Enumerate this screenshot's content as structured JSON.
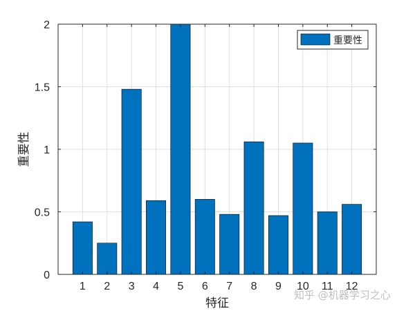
{
  "chart_data": {
    "type": "bar",
    "categories": [
      "1",
      "2",
      "3",
      "4",
      "5",
      "6",
      "7",
      "8",
      "9",
      "10",
      "11",
      "12"
    ],
    "series": [
      {
        "name": "重要性",
        "color": "#0072BD",
        "values": [
          0.42,
          0.25,
          1.48,
          0.59,
          2.0,
          0.6,
          0.48,
          1.06,
          0.47,
          1.05,
          0.5,
          0.56
        ]
      }
    ],
    "title": "",
    "xlabel": "特征",
    "ylabel": "重要性",
    "ylim": [
      0,
      2
    ],
    "yticks": [
      0,
      0.5,
      1,
      1.5,
      2
    ],
    "ytick_labels": [
      "0",
      "0.5",
      "1",
      "1.5",
      "2"
    ],
    "grid": true,
    "legend_position": "top-right"
  },
  "watermark": "知乎 @机器学习之心"
}
